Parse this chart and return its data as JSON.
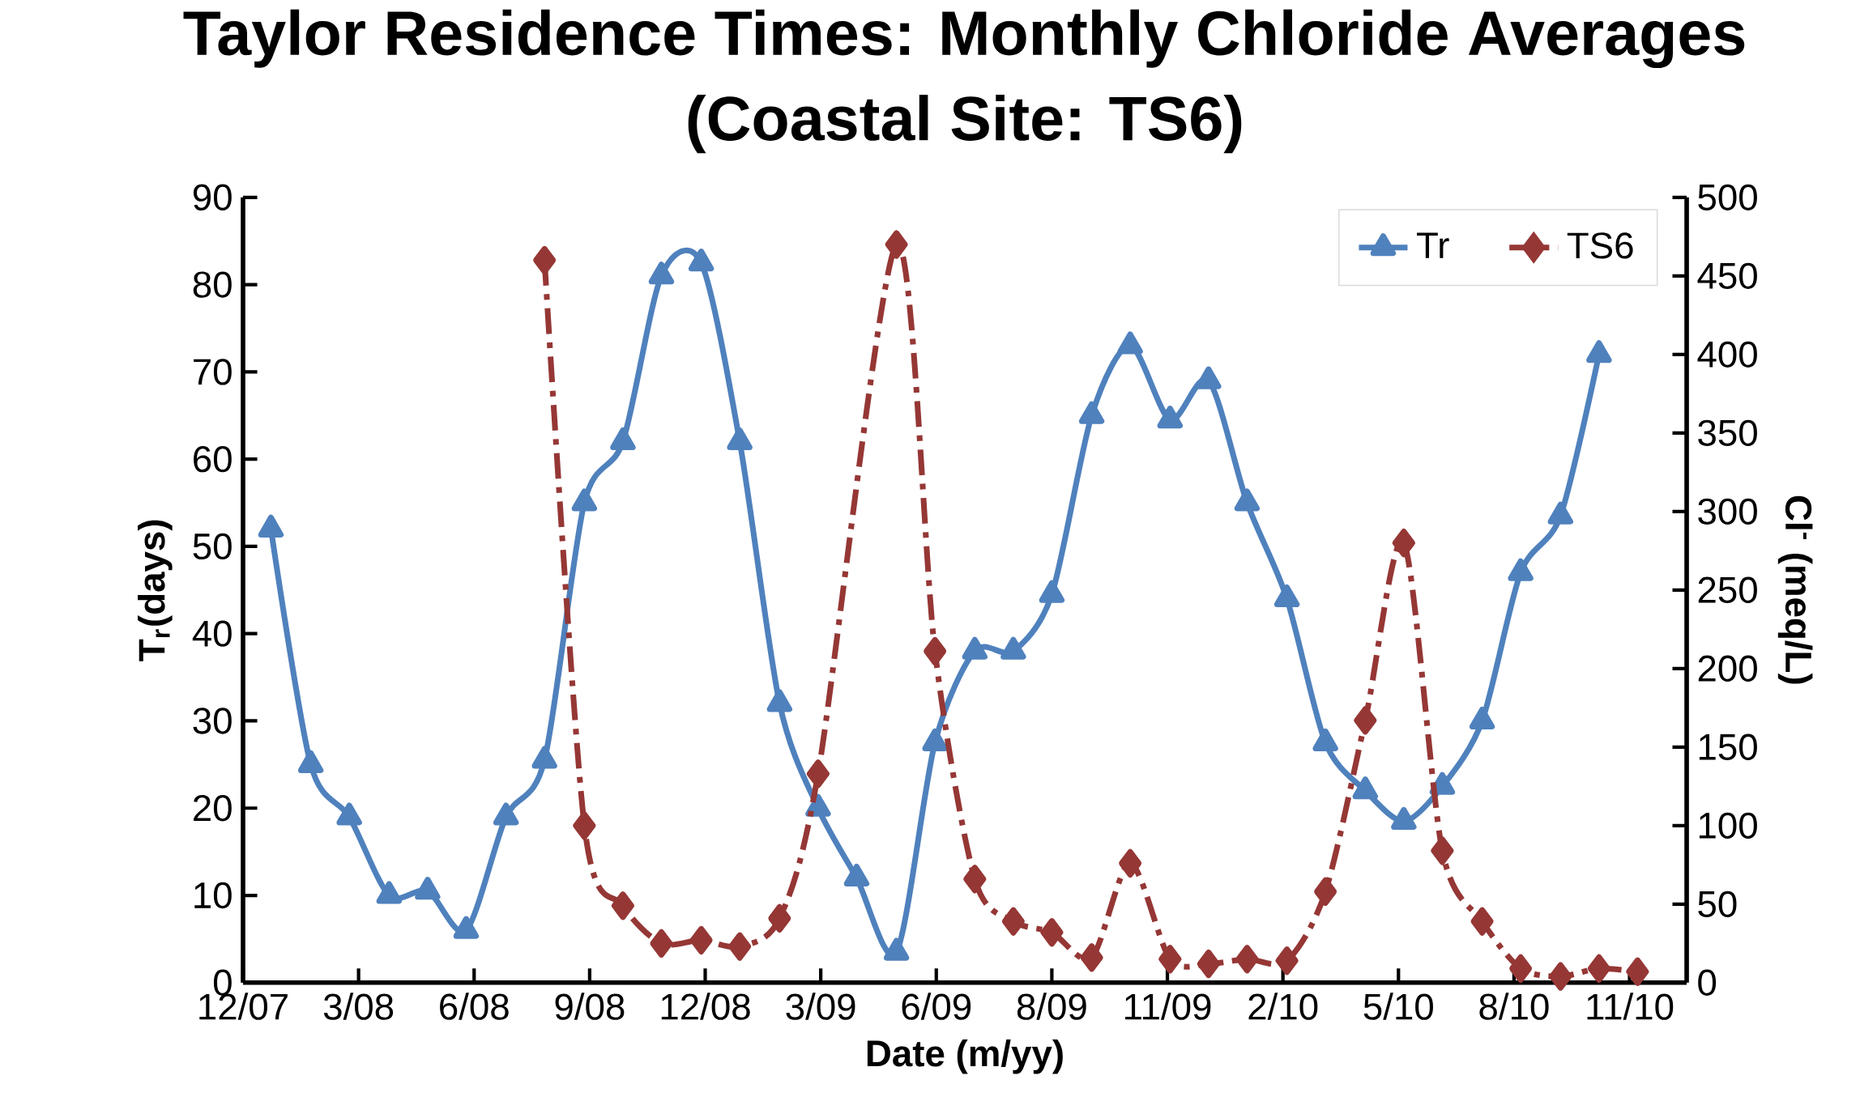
{
  "chart_data": {
    "type": "line",
    "title": "Taylor Residence Times: Monthly Chloride Averages",
    "subtitle": "(Coastal Site: TS6)",
    "xlabel": "Date (m/yy)",
    "ylabel": "T$_{r}$(days)",
    "y2label": "Cl$^{-}$ (meq/L)",
    "xlim": [
      "2007-12-31",
      "2010-12-22"
    ],
    "xticks": [
      {
        "value": "2007-12-31",
        "label": "12/07"
      },
      {
        "value": "2008-03-27",
        "label": "3/08"
      },
      {
        "value": "2008-06-22",
        "label": "6/08"
      },
      {
        "value": "2008-09-17",
        "label": "9/08"
      },
      {
        "value": "2008-12-13",
        "label": "12/08"
      },
      {
        "value": "2009-03-10",
        "label": "3/09"
      },
      {
        "value": "2009-06-05",
        "label": "6/09"
      },
      {
        "value": "2009-08-31",
        "label": "8/09"
      },
      {
        "value": "2009-11-26",
        "label": "11/09"
      },
      {
        "value": "2010-02-21",
        "label": "2/10"
      },
      {
        "value": "2010-05-19",
        "label": "5/10"
      },
      {
        "value": "2010-08-14",
        "label": "8/10"
      },
      {
        "value": "2010-11-09",
        "label": "11/10"
      }
    ],
    "ylim": [
      0,
      90
    ],
    "yticks": [
      0,
      10,
      20,
      30,
      40,
      50,
      60,
      70,
      80,
      90
    ],
    "y2lim": [
      0,
      500
    ],
    "y2ticks": [
      0,
      50,
      100,
      150,
      200,
      250,
      300,
      350,
      400,
      450,
      500
    ],
    "legend": "top right",
    "grid": false,
    "series": [
      {
        "name": "Tr",
        "color": "#4f81bd",
        "marker": "triangle",
        "line_style": "solid",
        "x": [
          "2008-01-21",
          "2008-02-20",
          "2008-03-20",
          "2008-04-19",
          "2008-05-18",
          "2008-06-16",
          "2008-07-16",
          "2008-08-14",
          "2008-09-13",
          "2008-10-12",
          "2008-11-10",
          "2008-12-10",
          "2009-01-08",
          "2009-02-07",
          "2009-03-08",
          "2009-04-06",
          "2009-05-06",
          "2009-06-04",
          "2009-07-04",
          "2009-08-02",
          "2009-08-31",
          "2009-09-30",
          "2009-10-29",
          "2009-11-28",
          "2009-12-27",
          "2010-01-25",
          "2010-02-24",
          "2010-03-25",
          "2010-04-24",
          "2010-05-23",
          "2010-06-21",
          "2010-07-21",
          "2010-08-19",
          "2010-09-18",
          "2010-10-17"
        ],
        "values": [
          52,
          25,
          19,
          10,
          10.5,
          6,
          19,
          25.5,
          55,
          62,
          81,
          82.5,
          62,
          32,
          20,
          12,
          3.5,
          27.5,
          38,
          38,
          44.5,
          65,
          73,
          64.5,
          69,
          55,
          44,
          27.5,
          22,
          18.5,
          22.5,
          30,
          47,
          53.5,
          72
        ]
      },
      {
        "name": "TS6",
        "color": "#953735",
        "marker": "diamond",
        "line_style": "dashdot",
        "axis": "y2",
        "x": [
          "2008-08-14",
          "2008-09-13",
          "2008-10-12",
          "2008-11-10",
          "2008-12-10",
          "2009-01-08",
          "2009-02-07",
          "2009-03-08",
          "2009-05-06",
          "2009-06-04",
          "2009-07-04",
          "2009-08-02",
          "2009-08-31",
          "2009-09-30",
          "2009-10-29",
          "2009-11-28",
          "2009-12-27",
          "2010-01-25",
          "2010-02-24",
          "2010-03-25",
          "2010-04-24",
          "2010-05-23",
          "2010-06-21",
          "2010-07-21",
          "2010-08-19",
          "2010-09-18",
          "2010-10-17",
          "2010-11-15"
        ],
        "values": [
          460,
          100,
          49,
          25,
          27,
          23,
          41,
          133,
          470,
          211,
          66,
          39,
          32,
          16,
          76,
          15,
          12,
          15,
          14,
          58,
          167,
          280,
          84,
          39,
          9,
          4,
          9,
          7
        ]
      }
    ]
  }
}
